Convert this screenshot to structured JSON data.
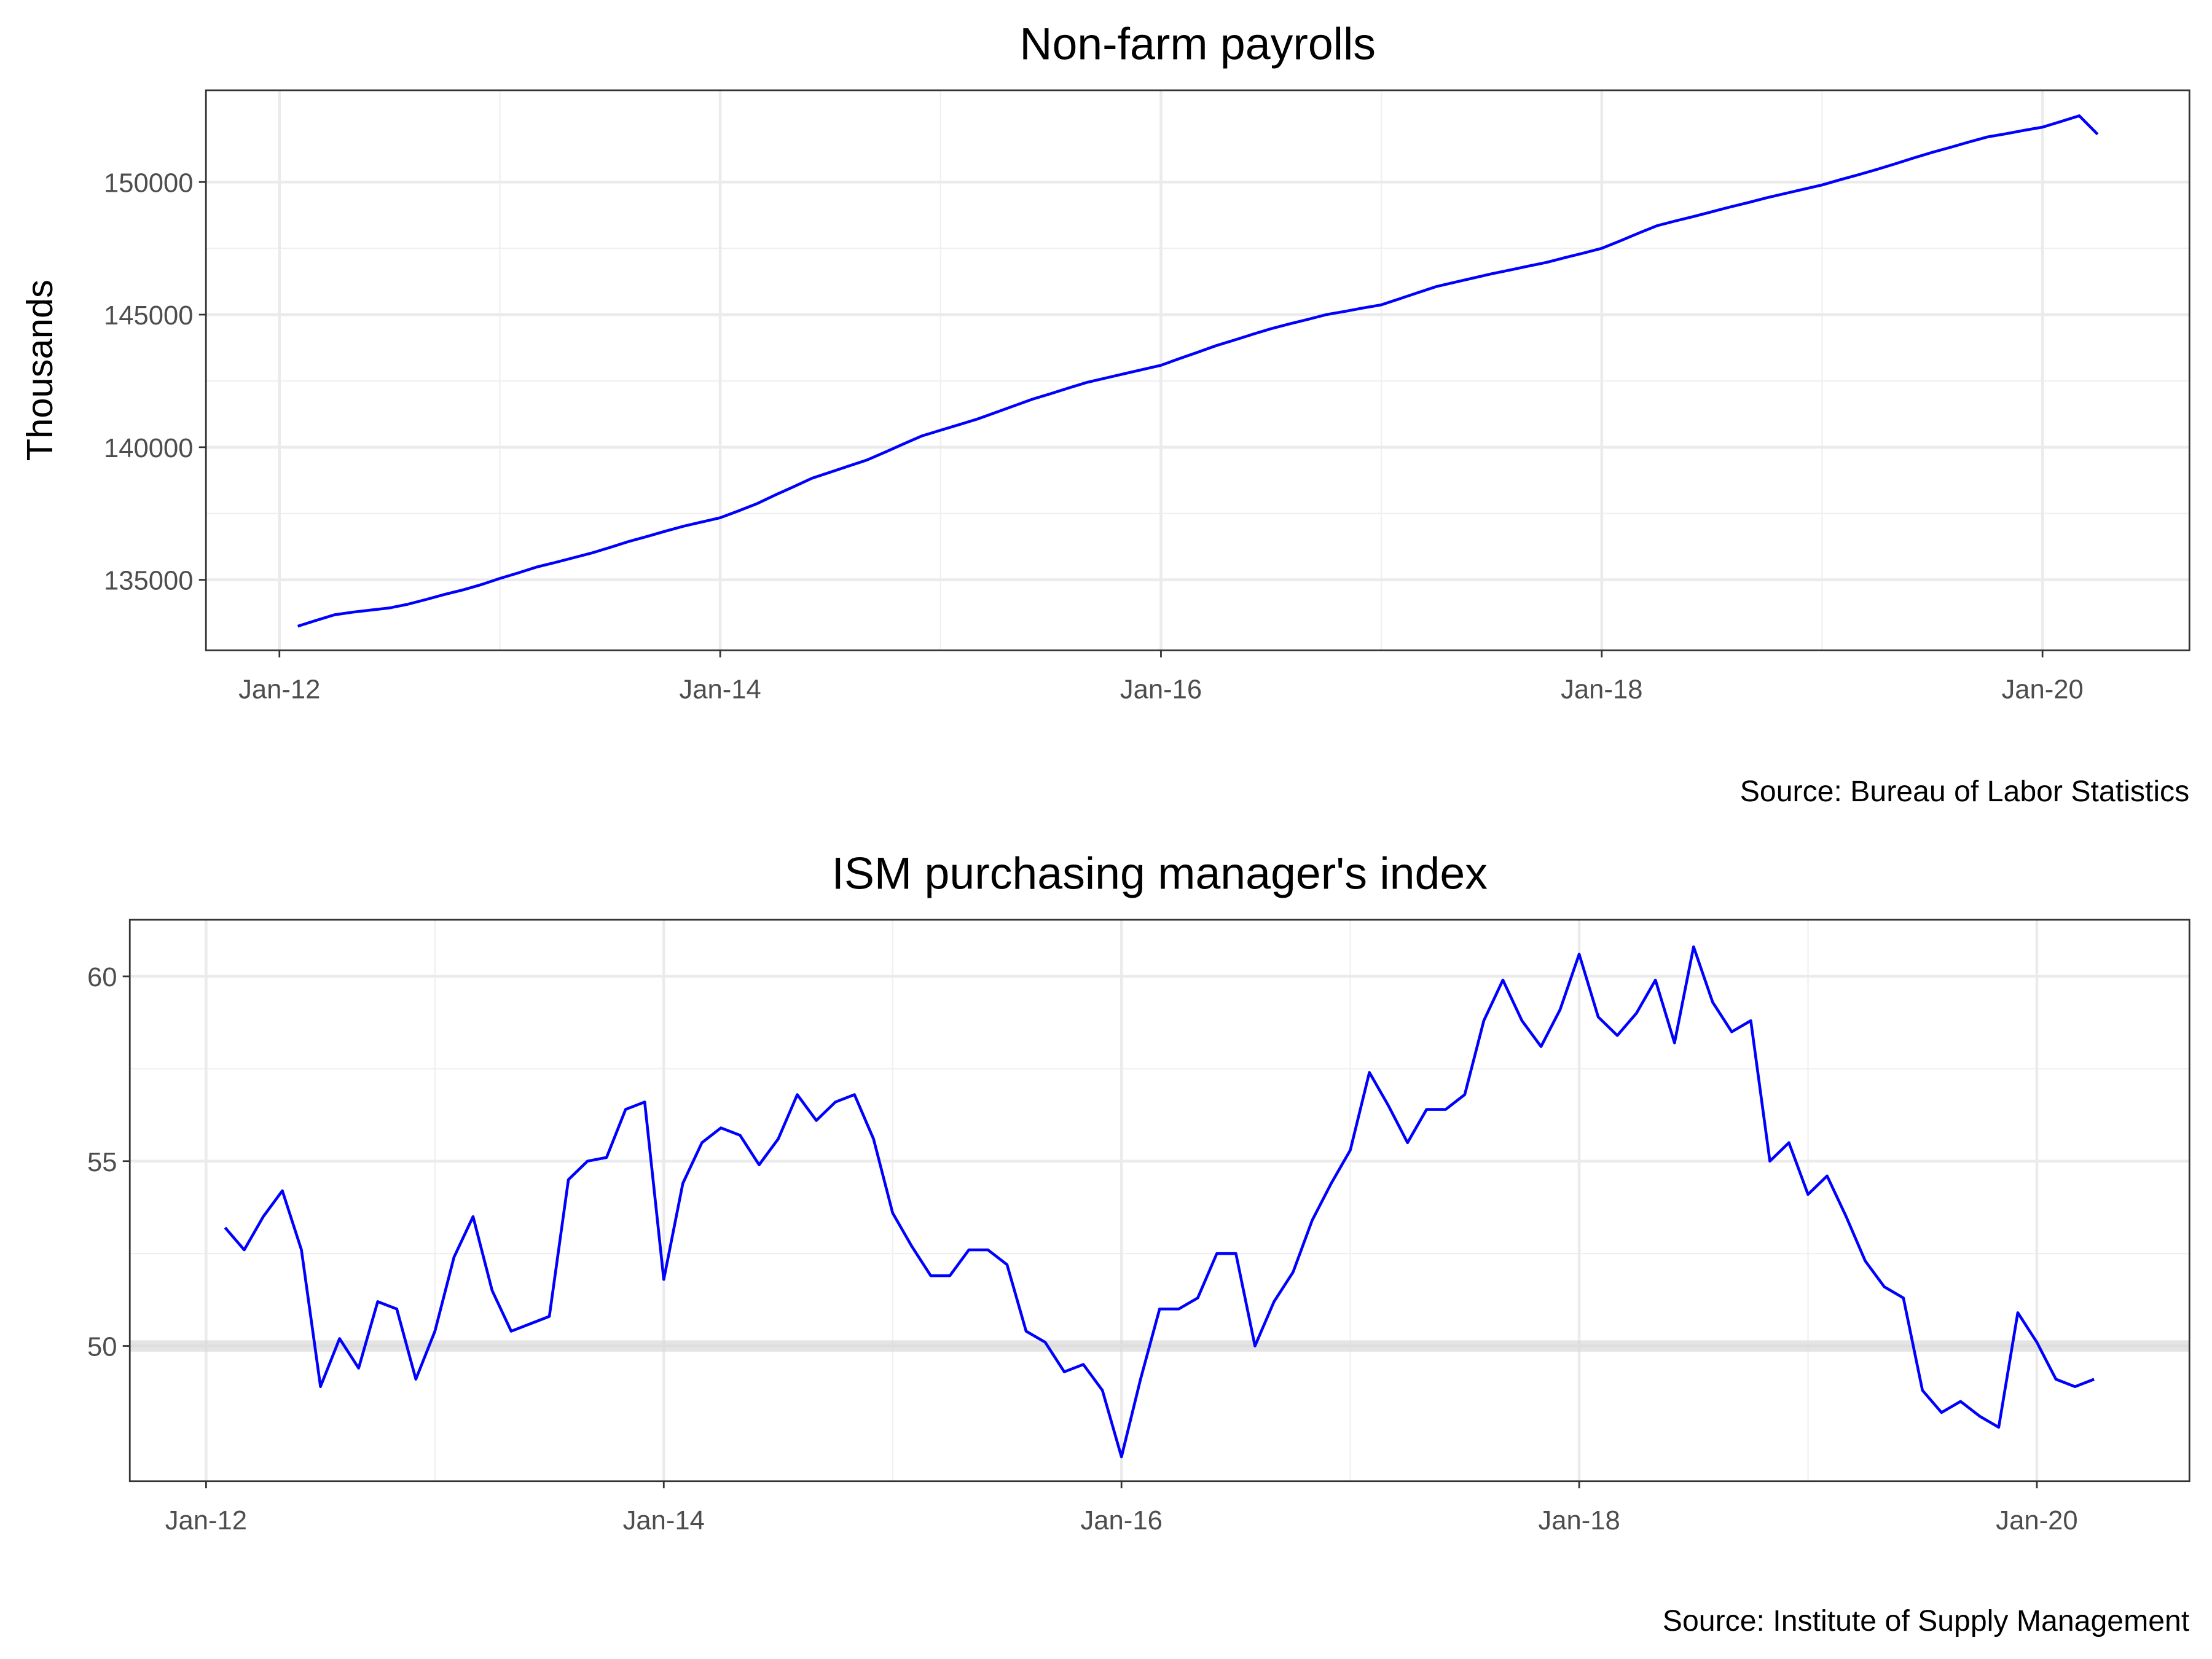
{
  "chart_data": [
    {
      "type": "line",
      "title": "Non-farm payrolls",
      "ylabel": "Thousands",
      "source": "Source: Bureau of Labor Statistics",
      "color": "#0000ff",
      "x": [
        "2012-02",
        "2012-03",
        "2012-04",
        "2012-05",
        "2012-06",
        "2012-07",
        "2012-08",
        "2012-09",
        "2012-10",
        "2012-11",
        "2012-12",
        "2013-01",
        "2013-02",
        "2013-03",
        "2013-04",
        "2013-05",
        "2013-06",
        "2013-07",
        "2013-08",
        "2013-09",
        "2013-10",
        "2013-11",
        "2013-12",
        "2014-01",
        "2014-02",
        "2014-03",
        "2014-04",
        "2014-05",
        "2014-06",
        "2014-07",
        "2014-08",
        "2014-09",
        "2014-10",
        "2014-11",
        "2014-12",
        "2015-01",
        "2015-02",
        "2015-03",
        "2015-04",
        "2015-05",
        "2015-06",
        "2015-07",
        "2015-08",
        "2015-09",
        "2015-10",
        "2015-11",
        "2015-12",
        "2016-01",
        "2016-02",
        "2016-03",
        "2016-04",
        "2016-05",
        "2016-06",
        "2016-07",
        "2016-08",
        "2016-09",
        "2016-10",
        "2016-11",
        "2016-12",
        "2017-01",
        "2017-02",
        "2017-03",
        "2017-04",
        "2017-05",
        "2017-06",
        "2017-07",
        "2017-08",
        "2017-09",
        "2017-10",
        "2017-11",
        "2017-12",
        "2018-01",
        "2018-02",
        "2018-03",
        "2018-04",
        "2018-05",
        "2018-06",
        "2018-07",
        "2018-08",
        "2018-09",
        "2018-10",
        "2018-11",
        "2018-12",
        "2019-01",
        "2019-02",
        "2019-03",
        "2019-04",
        "2019-05",
        "2019-06",
        "2019-07",
        "2019-08",
        "2019-09",
        "2019-10",
        "2019-11",
        "2019-12",
        "2020-01",
        "2020-02",
        "2020-03",
        "2020-04"
      ],
      "values": [
        133250,
        133470,
        133680,
        133780,
        133860,
        133940,
        134080,
        134260,
        134450,
        134620,
        134820,
        135050,
        135260,
        135480,
        135650,
        135830,
        136010,
        136220,
        136440,
        136630,
        136830,
        137020,
        137180,
        137340,
        137600,
        137870,
        138200,
        138510,
        138830,
        139060,
        139290,
        139520,
        139820,
        140130,
        140430,
        140640,
        140850,
        141060,
        141310,
        141560,
        141810,
        142020,
        142240,
        142450,
        142610,
        142770,
        142930,
        143090,
        143340,
        143580,
        143830,
        144040,
        144260,
        144470,
        144650,
        144820,
        145000,
        145120,
        145250,
        145370,
        145600,
        145830,
        146060,
        146220,
        146380,
        146540,
        146680,
        146830,
        146970,
        147150,
        147320,
        147500,
        147780,
        148070,
        148350,
        148530,
        148700,
        148880,
        149060,
        149230,
        149410,
        149570,
        149730,
        149890,
        150090,
        150280,
        150480,
        150690,
        150910,
        151120,
        151310,
        151510,
        151700,
        151820,
        151950,
        152070,
        152280,
        152500,
        151800
      ],
      "xlim": [
        "2011-09",
        "2020-09"
      ],
      "xticks": [
        {
          "value": "2012-01",
          "label": "Jan-12"
        },
        {
          "value": "2014-01",
          "label": "Jan-14"
        },
        {
          "value": "2016-01",
          "label": "Jan-16"
        },
        {
          "value": "2018-01",
          "label": "Jan-18"
        },
        {
          "value": "2020-01",
          "label": "Jan-20"
        }
      ],
      "ylim": [
        132340,
        153460
      ],
      "yticks": [
        135000,
        140000,
        145000,
        150000
      ],
      "grid": true
    },
    {
      "type": "line",
      "title": "ISM purchasing manager's index",
      "source": "Source: Institute of Supply Management",
      "color": "#0000ff",
      "x": [
        "2012-02",
        "2012-03",
        "2012-04",
        "2012-05",
        "2012-06",
        "2012-07",
        "2012-08",
        "2012-09",
        "2012-10",
        "2012-11",
        "2012-12",
        "2013-01",
        "2013-02",
        "2013-03",
        "2013-04",
        "2013-05",
        "2013-06",
        "2013-07",
        "2013-08",
        "2013-09",
        "2013-10",
        "2013-11",
        "2013-12",
        "2014-01",
        "2014-02",
        "2014-03",
        "2014-04",
        "2014-05",
        "2014-06",
        "2014-07",
        "2014-08",
        "2014-09",
        "2014-10",
        "2014-11",
        "2014-12",
        "2015-01",
        "2015-02",
        "2015-03",
        "2015-04",
        "2015-05",
        "2015-06",
        "2015-07",
        "2015-08",
        "2015-09",
        "2015-10",
        "2015-11",
        "2015-12",
        "2016-01",
        "2016-02",
        "2016-03",
        "2016-04",
        "2016-05",
        "2016-06",
        "2016-07",
        "2016-08",
        "2016-09",
        "2016-10",
        "2016-11",
        "2016-12",
        "2017-01",
        "2017-02",
        "2017-03",
        "2017-04",
        "2017-05",
        "2017-06",
        "2017-07",
        "2017-08",
        "2017-09",
        "2017-10",
        "2017-11",
        "2017-12",
        "2018-01",
        "2018-02",
        "2018-03",
        "2018-04",
        "2018-05",
        "2018-06",
        "2018-07",
        "2018-08",
        "2018-09",
        "2018-10",
        "2018-11",
        "2018-12",
        "2019-01",
        "2019-02",
        "2019-03",
        "2019-04",
        "2019-05",
        "2019-06",
        "2019-07",
        "2019-08",
        "2019-09",
        "2019-10",
        "2019-11",
        "2019-12",
        "2020-01",
        "2020-02",
        "2020-03",
        "2020-04"
      ],
      "values": [
        53.2,
        52.6,
        53.5,
        54.2,
        52.6,
        48.9,
        50.2,
        49.4,
        51.2,
        51.0,
        49.1,
        50.4,
        52.4,
        53.5,
        51.5,
        50.4,
        50.6,
        50.8,
        54.5,
        55.0,
        55.1,
        56.4,
        56.6,
        51.8,
        54.4,
        55.5,
        55.9,
        55.7,
        54.9,
        55.6,
        56.8,
        56.1,
        56.6,
        56.8,
        55.6,
        53.6,
        52.7,
        51.9,
        51.9,
        52.6,
        52.6,
        52.2,
        50.4,
        50.1,
        49.3,
        49.5,
        48.8,
        47.0,
        49.1,
        51.0,
        51.0,
        51.3,
        52.5,
        52.5,
        50.0,
        51.2,
        52.0,
        53.4,
        54.4,
        55.3,
        57.4,
        56.5,
        55.5,
        56.4,
        56.4,
        56.8,
        58.8,
        59.9,
        58.8,
        58.1,
        59.1,
        60.6,
        58.9,
        58.4,
        59.0,
        59.9,
        58.2,
        60.8,
        59.3,
        58.5,
        58.8,
        55.0,
        55.5,
        54.1,
        54.6,
        53.5,
        52.3,
        51.6,
        51.3,
        48.8,
        48.2,
        48.5,
        48.1,
        47.8,
        50.9,
        50.1,
        49.1,
        48.9,
        49.1
      ],
      "reference_line": 50,
      "xlim": [
        "2011-09",
        "2020-09"
      ],
      "xticks": [
        {
          "value": "2012-01",
          "label": "Jan-12"
        },
        {
          "value": "2014-01",
          "label": "Jan-14"
        },
        {
          "value": "2016-01",
          "label": "Jan-16"
        },
        {
          "value": "2018-01",
          "label": "Jan-18"
        },
        {
          "value": "2020-01",
          "label": "Jan-20"
        }
      ],
      "ylim": [
        46.34,
        61.53
      ],
      "yticks": [
        50,
        55,
        60
      ],
      "grid": true
    }
  ]
}
